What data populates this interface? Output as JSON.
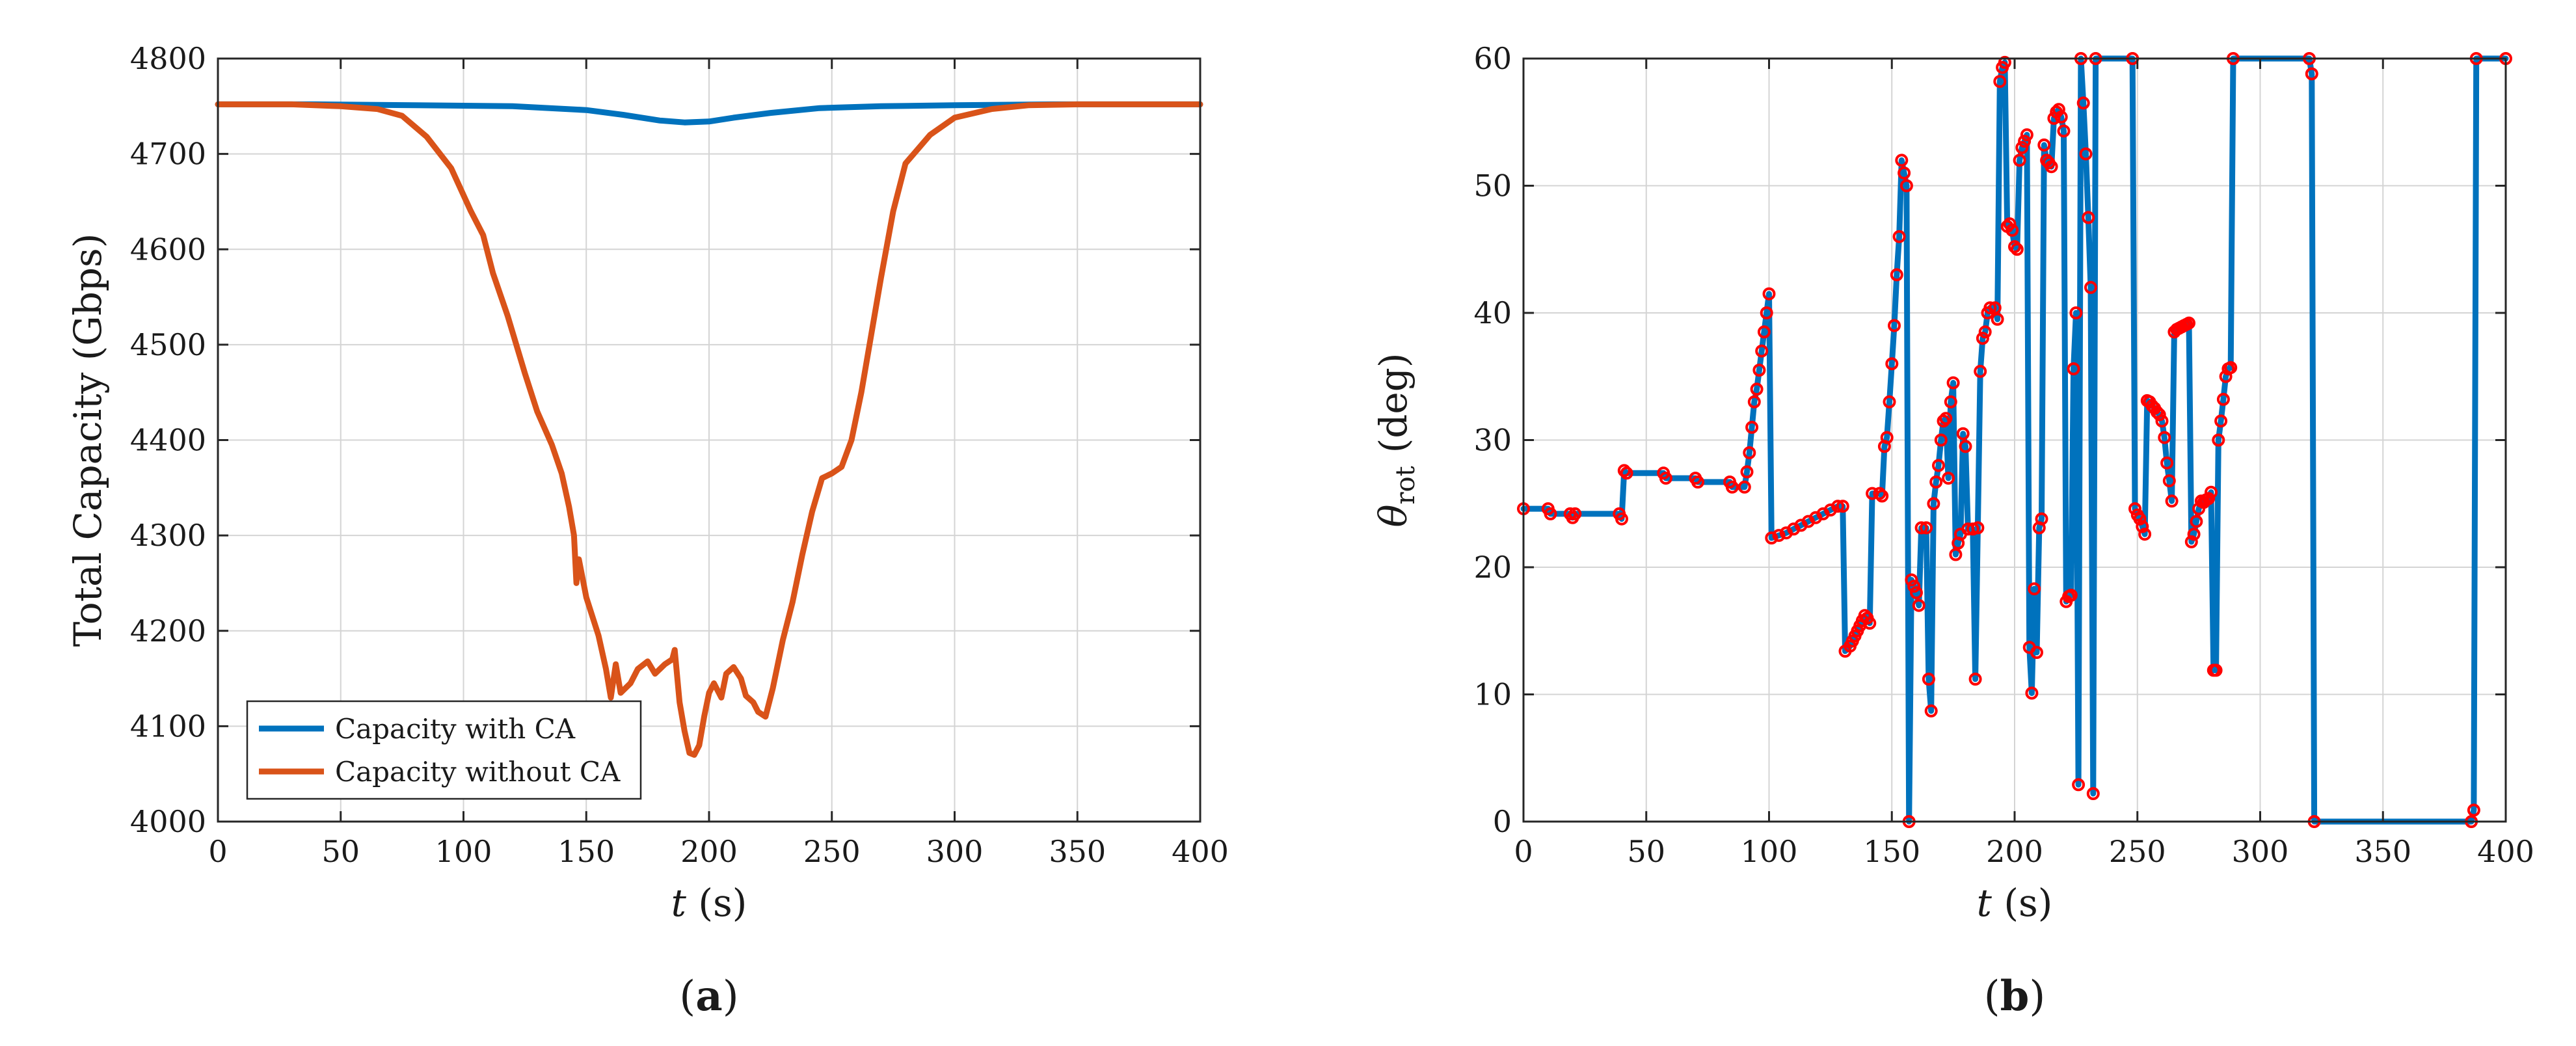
{
  "colors": {
    "blue": "#0072BD",
    "orange": "#D95319",
    "marker": "#FF0000",
    "grid": "#d4d4d4",
    "axis": "#262626"
  },
  "panels": {
    "a_label_prefix": "(",
    "a_label_letter": "a",
    "a_label_suffix": ")",
    "b_label_prefix": "(",
    "b_label_letter": "b",
    "b_label_suffix": ")"
  },
  "chart_data": [
    {
      "type": "line",
      "title": "",
      "xlabel_var": "t",
      "xlabel_unit": " (s)",
      "ylabel": "Total Capacity (Gbps)",
      "xlim": [
        0,
        400
      ],
      "ylim": [
        4000,
        4800
      ],
      "xticks": [
        0,
        50,
        100,
        150,
        200,
        250,
        300,
        350,
        400
      ],
      "yticks": [
        4000,
        4100,
        4200,
        4300,
        4400,
        4500,
        4600,
        4700,
        4800
      ],
      "grid": true,
      "legend_position": "bottom-left",
      "series": [
        {
          "name": "Capacity with CA",
          "color": "#0072BD",
          "points": [
            [
              0,
              4752
            ],
            [
              40,
              4752
            ],
            [
              80,
              4751
            ],
            [
              120,
              4750
            ],
            [
              150,
              4746
            ],
            [
              165,
              4741
            ],
            [
              180,
              4735
            ],
            [
              190,
              4733
            ],
            [
              200,
              4734
            ],
            [
              210,
              4738
            ],
            [
              225,
              4743
            ],
            [
              245,
              4748
            ],
            [
              270,
              4750
            ],
            [
              300,
              4751
            ],
            [
              340,
              4752
            ],
            [
              400,
              4752
            ]
          ]
        },
        {
          "name": "Capacity without CA",
          "color": "#D95319",
          "points": [
            [
              0,
              4752
            ],
            [
              30,
              4752
            ],
            [
              50,
              4750
            ],
            [
              65,
              4747
            ],
            [
              75,
              4740
            ],
            [
              85,
              4718
            ],
            [
              95,
              4685
            ],
            [
              103,
              4640
            ],
            [
              108,
              4615
            ],
            [
              112,
              4575
            ],
            [
              118,
              4530
            ],
            [
              125,
              4470
            ],
            [
              130,
              4430
            ],
            [
              136,
              4395
            ],
            [
              140,
              4365
            ],
            [
              143,
              4330
            ],
            [
              145,
              4300
            ],
            [
              146,
              4250
            ],
            [
              147,
              4275
            ],
            [
              150,
              4235
            ],
            [
              155,
              4195
            ],
            [
              158,
              4160
            ],
            [
              160,
              4130
            ],
            [
              162,
              4165
            ],
            [
              164,
              4135
            ],
            [
              168,
              4145
            ],
            [
              171,
              4160
            ],
            [
              175,
              4168
            ],
            [
              178,
              4155
            ],
            [
              182,
              4165
            ],
            [
              185,
              4170
            ],
            [
              186,
              4180
            ],
            [
              188,
              4125
            ],
            [
              190,
              4095
            ],
            [
              192,
              4072
            ],
            [
              194,
              4070
            ],
            [
              196,
              4080
            ],
            [
              198,
              4110
            ],
            [
              200,
              4135
            ],
            [
              202,
              4145
            ],
            [
              205,
              4130
            ],
            [
              207,
              4155
            ],
            [
              210,
              4162
            ],
            [
              213,
              4150
            ],
            [
              215,
              4132
            ],
            [
              218,
              4125
            ],
            [
              220,
              4115
            ],
            [
              223,
              4110
            ],
            [
              226,
              4140
            ],
            [
              230,
              4190
            ],
            [
              234,
              4230
            ],
            [
              238,
              4280
            ],
            [
              242,
              4325
            ],
            [
              246,
              4360
            ],
            [
              250,
              4365
            ],
            [
              254,
              4372
            ],
            [
              258,
              4400
            ],
            [
              262,
              4450
            ],
            [
              266,
              4510
            ],
            [
              270,
              4570
            ],
            [
              275,
              4640
            ],
            [
              280,
              4690
            ],
            [
              290,
              4720
            ],
            [
              300,
              4738
            ],
            [
              315,
              4747
            ],
            [
              330,
              4751
            ],
            [
              350,
              4752
            ],
            [
              400,
              4752
            ]
          ]
        }
      ]
    },
    {
      "type": "line",
      "title": "",
      "xlabel_var": "t",
      "xlabel_unit": " (s)",
      "ylabel_sym": "θ",
      "ylabel_sub": "rot",
      "ylabel_unit": "(deg)",
      "xlim": [
        0,
        400
      ],
      "ylim": [
        0,
        60
      ],
      "xticks": [
        0,
        50,
        100,
        150,
        200,
        250,
        300,
        350,
        400
      ],
      "yticks": [
        0,
        10,
        20,
        30,
        40,
        50,
        60
      ],
      "grid": true,
      "marker": "circle",
      "series": [
        {
          "color": "#0072BD",
          "points": [
            [
              0,
              24.6
            ],
            [
              10,
              24.6
            ],
            [
              11,
              24.2
            ],
            [
              19,
              24.2
            ],
            [
              20,
              23.9
            ],
            [
              21,
              24.2
            ],
            [
              39,
              24.2
            ],
            [
              40,
              23.8
            ],
            [
              41,
              27.6
            ],
            [
              42,
              27.4
            ],
            [
              57,
              27.4
            ],
            [
              58,
              27
            ],
            [
              70,
              27
            ],
            [
              71,
              26.7
            ],
            [
              84,
              26.7
            ],
            [
              85,
              26.3
            ],
            [
              90,
              26.3
            ],
            [
              91,
              27.5
            ],
            [
              92,
              29
            ],
            [
              93,
              31
            ],
            [
              94,
              33
            ],
            [
              95,
              34
            ],
            [
              96,
              35.5
            ],
            [
              97,
              37
            ],
            [
              98,
              38.5
            ],
            [
              99,
              40
            ],
            [
              100,
              41.5
            ],
            [
              101,
              22.3
            ],
            [
              104,
              22.5
            ],
            [
              107,
              22.7
            ],
            [
              110,
              23
            ],
            [
              113,
              23.3
            ],
            [
              116,
              23.6
            ],
            [
              119,
              23.9
            ],
            [
              122,
              24.2
            ],
            [
              125,
              24.5
            ],
            [
              128,
              24.8
            ],
            [
              130,
              24.8
            ],
            [
              131,
              13.4
            ],
            [
              133,
              13.8
            ],
            [
              134,
              14.2
            ],
            [
              135,
              14.6
            ],
            [
              136,
              15
            ],
            [
              137,
              15.4
            ],
            [
              138,
              15.8
            ],
            [
              139,
              16.2
            ],
            [
              140,
              16
            ],
            [
              141,
              15.6
            ],
            [
              142,
              25.8
            ],
            [
              145,
              25.8
            ],
            [
              146,
              25.6
            ],
            [
              147,
              29.5
            ],
            [
              148,
              30.2
            ],
            [
              149,
              33
            ],
            [
              150,
              36
            ],
            [
              151,
              39
            ],
            [
              152,
              43
            ],
            [
              153,
              46
            ],
            [
              154,
              52
            ],
            [
              155,
              51
            ],
            [
              156,
              50
            ],
            [
              157,
              0
            ],
            [
              158,
              19
            ],
            [
              159,
              18.5
            ],
            [
              160,
              18
            ],
            [
              161,
              17
            ],
            [
              162,
              23.1
            ],
            [
              164,
              23.1
            ],
            [
              165,
              11.2
            ],
            [
              166,
              8.7
            ],
            [
              167,
              25
            ],
            [
              168,
              26.7
            ],
            [
              169,
              28
            ],
            [
              170,
              30
            ],
            [
              171,
              31.5
            ],
            [
              172,
              31.7
            ],
            [
              173,
              27
            ],
            [
              174,
              33
            ],
            [
              175,
              34.5
            ],
            [
              176,
              21
            ],
            [
              177,
              21.9
            ],
            [
              178,
              22.6
            ],
            [
              179,
              30.5
            ],
            [
              180,
              29.5
            ],
            [
              181,
              23
            ],
            [
              183,
              23
            ],
            [
              184,
              11.2
            ],
            [
              185,
              23.1
            ],
            [
              186,
              35.4
            ],
            [
              187,
              38
            ],
            [
              188,
              38.5
            ],
            [
              189,
              40
            ],
            [
              190,
              40.4
            ],
            [
              192,
              40.4
            ],
            [
              193,
              39.5
            ],
            [
              194,
              58.2
            ],
            [
              195,
              59.3
            ],
            [
              196,
              59.7
            ],
            [
              197,
              46.8
            ],
            [
              198,
              47
            ],
            [
              199,
              46.5
            ],
            [
              200,
              45.2
            ],
            [
              201,
              45
            ],
            [
              202,
              52
            ],
            [
              203,
              53
            ],
            [
              204,
              53.5
            ],
            [
              205,
              54
            ],
            [
              206,
              13.7
            ],
            [
              207,
              10.1
            ],
            [
              208,
              18.3
            ],
            [
              209,
              13.3
            ],
            [
              210,
              23.1
            ],
            [
              211,
              23.8
            ],
            [
              212,
              53.2
            ],
            [
              213,
              52
            ],
            [
              214,
              51.8
            ],
            [
              215,
              51.5
            ],
            [
              216,
              55.3
            ],
            [
              217,
              55.8
            ],
            [
              218,
              56
            ],
            [
              219,
              55.4
            ],
            [
              220,
              54.3
            ],
            [
              221,
              17.3
            ],
            [
              222,
              17.7
            ],
            [
              223,
              17.8
            ],
            [
              224,
              35.6
            ],
            [
              225,
              40
            ],
            [
              226,
              2.9
            ],
            [
              227,
              60
            ],
            [
              228,
              56.5
            ],
            [
              229,
              52.5
            ],
            [
              230,
              47.5
            ],
            [
              231,
              42
            ],
            [
              232,
              2.2
            ],
            [
              233,
              60
            ],
            [
              248,
              60
            ],
            [
              249,
              24.6
            ],
            [
              250,
              24.1
            ],
            [
              251,
              23.8
            ],
            [
              252,
              23.2
            ],
            [
              253,
              22.6
            ],
            [
              254,
              33.1
            ],
            [
              255,
              33
            ],
            [
              256,
              32.7
            ],
            [
              257,
              32.5
            ],
            [
              258,
              32.2
            ],
            [
              259,
              32
            ],
            [
              260,
              31.5
            ],
            [
              261,
              30.2
            ],
            [
              262,
              28.2
            ],
            [
              263,
              26.8
            ],
            [
              264,
              25.2
            ],
            [
              265,
              38.5
            ],
            [
              266,
              38.7
            ],
            [
              267,
              38.8
            ],
            [
              268,
              38.9
            ],
            [
              269,
              39
            ],
            [
              270,
              39.1
            ],
            [
              271,
              39.2
            ],
            [
              272,
              22
            ],
            [
              273,
              22.6
            ],
            [
              274,
              23.6
            ],
            [
              275,
              24.6
            ],
            [
              276,
              25.2
            ],
            [
              277,
              25.1
            ],
            [
              278,
              25.3
            ],
            [
              279,
              25.4
            ],
            [
              280,
              25.9
            ],
            [
              281,
              11.9
            ],
            [
              282,
              11.9
            ],
            [
              283,
              30
            ],
            [
              284,
              31.5
            ],
            [
              285,
              33.2
            ],
            [
              286,
              35
            ],
            [
              287,
              35.6
            ],
            [
              288,
              35.7
            ],
            [
              289,
              60
            ],
            [
              320,
              60
            ],
            [
              321,
              58.8
            ],
            [
              322,
              0
            ],
            [
              386,
              0
            ],
            [
              387,
              0.9
            ],
            [
              388,
              60
            ],
            [
              400,
              60
            ]
          ]
        }
      ]
    }
  ]
}
